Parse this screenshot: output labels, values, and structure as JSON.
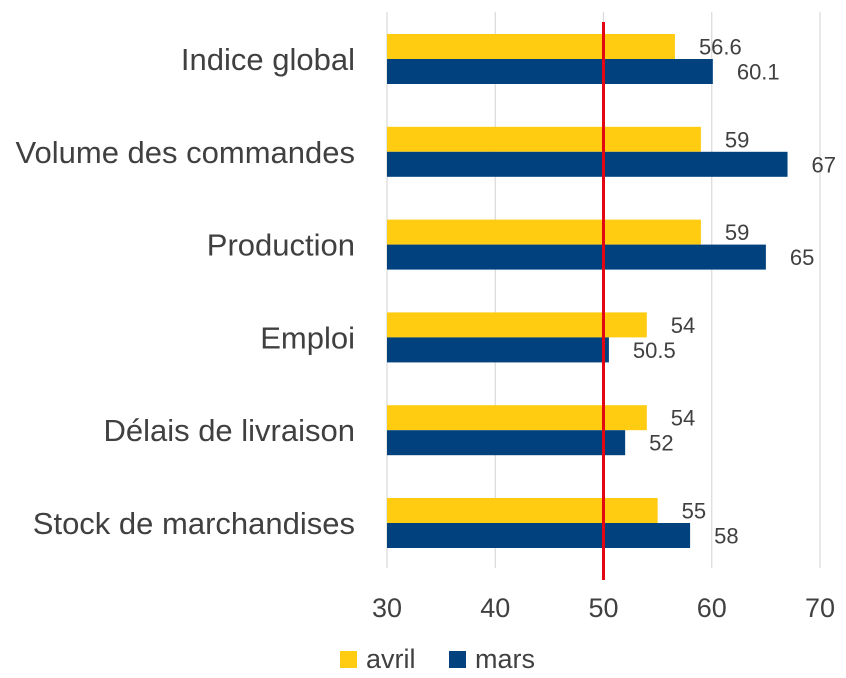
{
  "chart_data": {
    "type": "bar",
    "orientation": "horizontal",
    "title": "",
    "categories": [
      "Indice global",
      "Volume des commandes",
      "Production",
      "Emploi",
      "Délais de livraison",
      "Stock de marchandises"
    ],
    "series": [
      {
        "name": "avril",
        "color": "#FFCC12",
        "values": [
          56.6,
          59,
          59,
          54,
          54,
          55
        ]
      },
      {
        "name": "mars",
        "color": "#00417E",
        "values": [
          60.1,
          67,
          65,
          50.5,
          52,
          58
        ]
      }
    ],
    "xlim": [
      30,
      70
    ],
    "xticks": [
      30,
      40,
      50,
      60,
      70
    ],
    "reference_line": {
      "value": 50,
      "color": "#E30613"
    },
    "grid": "vertical",
    "legend_position": "bottom"
  }
}
